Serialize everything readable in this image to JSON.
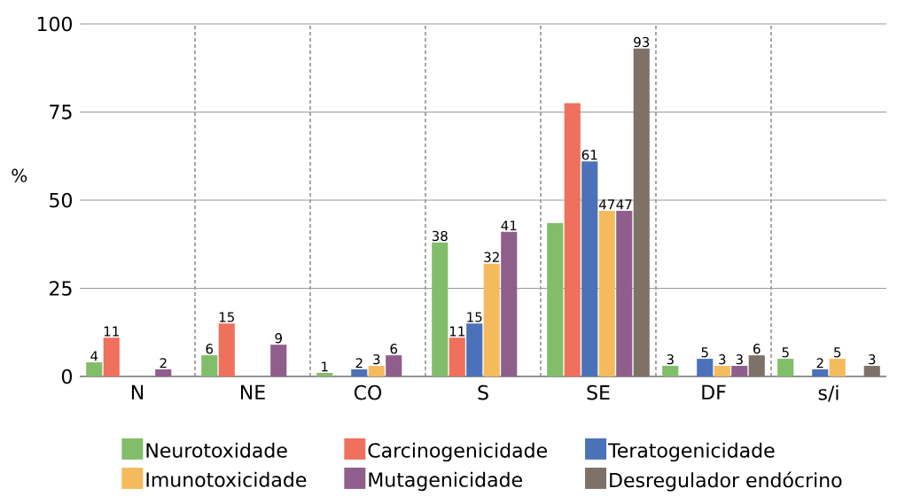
{
  "chart_data": {
    "type": "bar",
    "ylabel": "%",
    "categories": [
      "N",
      "NE",
      "CO",
      "S",
      "SE",
      "DF",
      "s/i"
    ],
    "series": [
      {
        "name": "Neurotoxidade",
        "color": "#82bd6a",
        "values": [
          4,
          6,
          1,
          38,
          43.5,
          3,
          5
        ],
        "value_labels": [
          "4",
          "6",
          "1",
          "38",
          null,
          "3",
          "5"
        ]
      },
      {
        "name": "Carcinogenicidade",
        "color": "#ef705d",
        "values": [
          11,
          15,
          null,
          11,
          77.5,
          null,
          null
        ],
        "value_labels": [
          "11",
          "15",
          null,
          "11",
          null,
          null,
          null
        ]
      },
      {
        "name": "Teratogenicidade",
        "color": "#4b72b8",
        "values": [
          null,
          null,
          2,
          15,
          61,
          5,
          2
        ],
        "value_labels": [
          null,
          null,
          "2",
          "15",
          "61",
          "5",
          "2"
        ]
      },
      {
        "name": "Imunotoxicidade",
        "color": "#f4bb5e",
        "values": [
          null,
          null,
          3,
          32,
          47,
          3,
          5
        ],
        "value_labels": [
          null,
          null,
          "3",
          "32",
          "47",
          "3",
          "5"
        ]
      },
      {
        "name": "Mutagenicidade",
        "color": "#8f5e8d",
        "values": [
          2,
          9,
          6,
          41,
          47,
          3,
          null
        ],
        "value_labels": [
          "2",
          "9",
          "6",
          "41",
          "47",
          "3",
          null
        ]
      },
      {
        "name": "Desregulador endócrino",
        "color": "#7e7268",
        "values": [
          null,
          null,
          null,
          null,
          93,
          6,
          3
        ],
        "value_labels": [
          null,
          null,
          null,
          null,
          "93",
          "6",
          "3"
        ]
      }
    ],
    "ylim": [
      0,
      100
    ],
    "yticks": [
      0,
      25,
      50,
      75,
      100
    ],
    "grid": "y",
    "legend": "bottom"
  }
}
